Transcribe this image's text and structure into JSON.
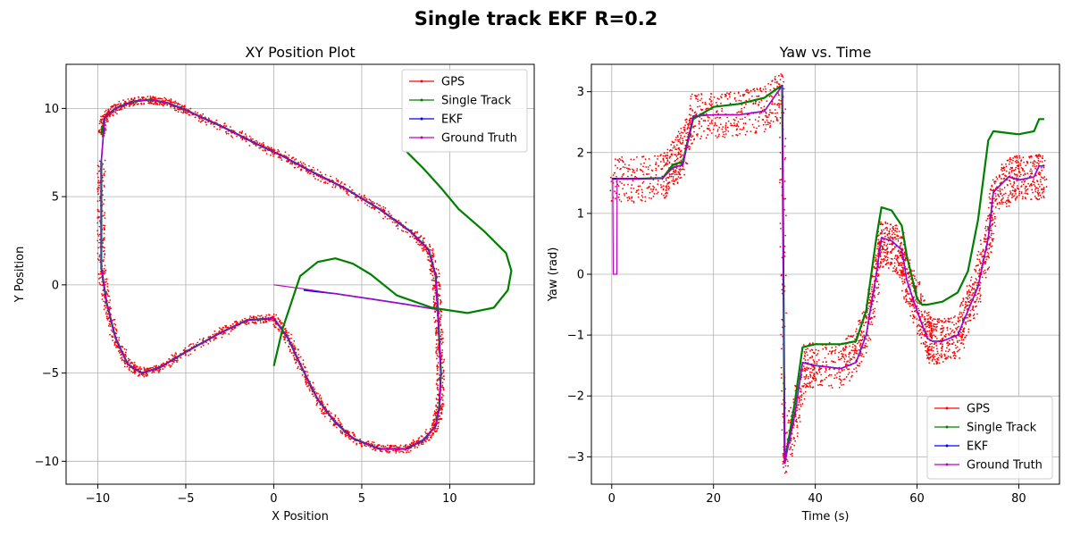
{
  "figure": {
    "title": "Single track EKF R=0.2"
  },
  "colors": {
    "gps": "#ff0000",
    "single_track": "#008000",
    "ekf": "#0000ff",
    "ground_truth": "#bf00bf",
    "grid": "#b0b0b0"
  },
  "chart_data": [
    {
      "type": "line",
      "title": "XY Position Plot",
      "xlabel": "X Position",
      "ylabel": "Y Position",
      "xlim": [
        -11.8,
        14.8
      ],
      "ylim": [
        -11.3,
        12.5
      ],
      "xticks": [
        -10,
        -5,
        0,
        5,
        10
      ],
      "yticks": [
        -10,
        -5,
        0,
        5,
        10
      ],
      "xtick_labels": [
        "−10",
        "−5",
        "0",
        "5",
        "10"
      ],
      "ytick_labels": [
        "−10",
        "−5",
        "0",
        "5",
        "10"
      ],
      "grid": true,
      "legend": "top-right",
      "series": [
        {
          "name": "GPS",
          "key": "gps",
          "style": "scatter-noisy",
          "x": [
            -9.8,
            -9.6,
            -9.0,
            -8.0,
            -7.0,
            -6.0,
            -5.0,
            -3.0,
            -1.0,
            0.5,
            2.0,
            4.0,
            6.0,
            7.8,
            8.8,
            9.2,
            9.3,
            9.4,
            9.5,
            9.4,
            9.2,
            8.5,
            7.5,
            6.0,
            4.5,
            3.5,
            2.5,
            1.5,
            0.8,
            0,
            -1.5,
            -3.0,
            -5.0,
            -6.5,
            -7.5,
            -8.3,
            -9.0,
            -9.5,
            -9.8,
            -9.8,
            -9.8
          ],
          "y": [
            8.5,
            9.5,
            10.0,
            10.4,
            10.5,
            10.3,
            9.9,
            9.0,
            8.0,
            7.3,
            6.5,
            5.5,
            4.3,
            3.0,
            2.0,
            0.5,
            -1.0,
            -3.0,
            -5.0,
            -7.0,
            -8.0,
            -8.8,
            -9.3,
            -9.3,
            -8.7,
            -7.8,
            -6.5,
            -4.5,
            -3.0,
            -1.9,
            -2.0,
            -2.7,
            -3.8,
            -4.7,
            -5.0,
            -4.5,
            -3.0,
            -1.0,
            1.0,
            4.0,
            7.0
          ]
        },
        {
          "name": "Single Track",
          "key": "single_track",
          "style": "line",
          "x": [
            -9.8,
            -9.6,
            -9.0,
            -8.0,
            -7.0,
            -6.0,
            -5.0,
            -3.0,
            -1.0,
            0.5,
            2.0,
            4.0,
            6.0,
            7.8,
            8.8,
            9.2,
            9.3,
            9.4,
            9.5,
            9.4,
            9.2,
            8.5,
            7.5,
            6.0,
            4.5,
            3.5,
            2.5,
            1.5,
            0.8,
            0,
            -1.5,
            -3.0,
            -5.0,
            -6.5,
            -7.5,
            -8.3,
            -9.0,
            -9.5,
            -9.8,
            -9.8,
            -9.8
          ],
          "y": [
            8.5,
            9.5,
            10.0,
            10.4,
            10.5,
            10.3,
            9.9,
            9.0,
            8.0,
            7.3,
            6.5,
            5.5,
            4.3,
            3.0,
            2.0,
            0.5,
            -1.0,
            -3.0,
            -5.0,
            -7.0,
            -8.0,
            -8.8,
            -9.3,
            -9.3,
            -8.7,
            -7.8,
            -6.5,
            -4.5,
            -3.0,
            -1.9,
            -2.0,
            -2.7,
            -3.8,
            -4.7,
            -5.0,
            -4.5,
            -3.0,
            -1.0,
            1.0,
            4.0,
            7.0
          ]
        },
        {
          "name": "EKF",
          "key": "ekf",
          "style": "line",
          "x": [
            1.7,
            3.5,
            5.5,
            7.5,
            9.3,
            9.2,
            9.3,
            9.4,
            9.5,
            9.4,
            9.2,
            8.5,
            7.5,
            6.0,
            4.5,
            3.5,
            2.5,
            1.5,
            0.8,
            0,
            -1.5,
            -3.0,
            -5.0,
            -6.5,
            -7.5,
            -8.3,
            -9.0,
            -9.5,
            -9.8,
            -9.8,
            -9.8,
            -9.6,
            -9.0,
            -8.0,
            -7.0,
            -6.0,
            -5.0,
            -3.0,
            -1.0,
            0.5,
            2.0,
            4.0,
            6.0,
            7.8,
            8.8,
            9.2
          ],
          "y": [
            -0.3,
            -0.5,
            -0.8,
            -1.1,
            -1.4,
            0.5,
            -1.0,
            -3.0,
            -5.0,
            -7.0,
            -8.0,
            -8.8,
            -9.3,
            -9.3,
            -8.7,
            -7.8,
            -6.5,
            -4.5,
            -3.0,
            -1.9,
            -2.0,
            -2.7,
            -3.8,
            -4.7,
            -5.0,
            -4.5,
            -3.0,
            -1.0,
            1.0,
            4.0,
            7.0,
            9.5,
            10.0,
            10.4,
            10.5,
            10.3,
            9.9,
            9.0,
            8.0,
            7.3,
            6.5,
            5.5,
            4.3,
            3.0,
            2.0,
            0.5
          ]
        },
        {
          "name": "Ground Truth",
          "key": "ground_truth",
          "style": "line",
          "x": [
            0,
            1.5,
            3.5,
            5.5,
            7.5,
            9.3,
            9.2,
            9.3,
            9.4,
            9.5,
            9.4,
            9.2,
            8.5,
            7.5,
            6.0,
            4.5,
            3.5,
            2.5,
            1.5,
            0.8,
            0,
            -1.5,
            -3.0,
            -5.0,
            -6.5,
            -7.5,
            -8.3,
            -9.0,
            -9.5,
            -9.8,
            -9.8,
            -9.8,
            -9.6,
            -9.0,
            -8.0,
            -7.0,
            -6.0,
            -5.0,
            -3.0,
            -1.0,
            0.5,
            2.0,
            4.0,
            6.0,
            7.8,
            8.8,
            9.2
          ],
          "y": [
            0,
            -0.2,
            -0.5,
            -0.8,
            -1.1,
            -1.4,
            0.5,
            -1.0,
            -3.0,
            -5.0,
            -7.0,
            -8.0,
            -8.8,
            -9.3,
            -9.3,
            -8.7,
            -7.8,
            -6.5,
            -4.5,
            -3.0,
            -1.9,
            -2.0,
            -2.7,
            -3.8,
            -4.7,
            -5.0,
            -4.5,
            -3.0,
            -1.0,
            1.0,
            4.0,
            7.0,
            9.5,
            10.0,
            10.4,
            10.5,
            10.3,
            9.9,
            9.0,
            8.0,
            7.3,
            6.5,
            5.5,
            4.3,
            3.0,
            2.0,
            0.5
          ]
        },
        {
          "name": "Single Track (drift)",
          "key": "single_track",
          "style": "line",
          "legend": false,
          "x": [
            0,
            0.5,
            1.5,
            2.5,
            3.5,
            4.5,
            5.5,
            7.0,
            9.0,
            11.0,
            12.5,
            13.3,
            13.5,
            13.2,
            12.0,
            10.5,
            9.5,
            8.5,
            7.5
          ],
          "y": [
            -4.6,
            -2.5,
            0.5,
            1.3,
            1.5,
            1.2,
            0.6,
            -0.6,
            -1.3,
            -1.6,
            -1.3,
            -0.3,
            0.8,
            1.8,
            3.0,
            4.3,
            5.5,
            6.6,
            7.6
          ]
        }
      ]
    },
    {
      "type": "line",
      "title": "Yaw vs. Time",
      "xlabel": "Time (s)",
      "ylabel": "Yaw (rad)",
      "xlim": [
        -4,
        88
      ],
      "ylim": [
        -3.45,
        3.45
      ],
      "xticks": [
        0,
        20,
        40,
        60,
        80
      ],
      "yticks": [
        -3,
        -2,
        -1,
        0,
        1,
        2,
        3
      ],
      "xtick_labels": [
        "0",
        "20",
        "40",
        "60",
        "80"
      ],
      "ytick_labels": [
        "−3",
        "−2",
        "−1",
        "0",
        "1",
        "2",
        "3"
      ],
      "grid": true,
      "legend": "bottom-right",
      "series": [
        {
          "name": "GPS",
          "key": "gps",
          "style": "scatter-noisy",
          "x": [
            0,
            5,
            10,
            12,
            14,
            16,
            20,
            25,
            30,
            33.5,
            34,
            36,
            38,
            40,
            45,
            48,
            50,
            52,
            53,
            55,
            57,
            58,
            60,
            62,
            63,
            65,
            68,
            70,
            72,
            74,
            75,
            78,
            80,
            83,
            85
          ],
          "y": [
            1.55,
            1.55,
            1.6,
            1.8,
            2.0,
            2.6,
            2.6,
            2.65,
            2.7,
            3.0,
            -3.0,
            -2.3,
            -1.5,
            -1.5,
            -1.5,
            -1.3,
            -0.9,
            0.0,
            0.5,
            0.45,
            0.35,
            -0.1,
            -0.5,
            -1.0,
            -1.1,
            -1.1,
            -1.0,
            -0.6,
            -0.2,
            0.6,
            1.2,
            1.55,
            1.6,
            1.6,
            1.6
          ]
        },
        {
          "name": "Single Track",
          "key": "single_track",
          "style": "line",
          "x": [
            0,
            5,
            10,
            12,
            14,
            16,
            20,
            25,
            30,
            32.5,
            33.5,
            34,
            36,
            37.5,
            40,
            45,
            48,
            50,
            52,
            53,
            55,
            57,
            58,
            60,
            61,
            62,
            65,
            68,
            70,
            72,
            74,
            75,
            78,
            80,
            83,
            84,
            85
          ],
          "y": [
            1.57,
            1.57,
            1.58,
            1.8,
            1.85,
            2.55,
            2.75,
            2.8,
            2.9,
            3.05,
            3.1,
            -3.1,
            -2.1,
            -1.2,
            -1.15,
            -1.15,
            -1.1,
            -0.6,
            0.6,
            1.1,
            1.05,
            0.8,
            0.3,
            -0.4,
            -0.5,
            -0.5,
            -0.45,
            -0.3,
            0.05,
            0.9,
            2.2,
            2.35,
            2.32,
            2.3,
            2.35,
            2.55,
            2.55
          ]
        },
        {
          "name": "EKF",
          "key": "ekf",
          "style": "line",
          "x": [
            0,
            5,
            10,
            12,
            14,
            16,
            20,
            25,
            30,
            33.5,
            34,
            36,
            37.5,
            40,
            45,
            48,
            50,
            52,
            53,
            55,
            57,
            58,
            60,
            62,
            63,
            65,
            68,
            70,
            72,
            74,
            75,
            78,
            80,
            83,
            84,
            85
          ],
          "y": [
            1.57,
            1.57,
            1.58,
            1.75,
            1.8,
            2.6,
            2.62,
            2.62,
            2.68,
            3.1,
            -3.1,
            -2.3,
            -1.45,
            -1.5,
            -1.55,
            -1.45,
            -1.0,
            0.0,
            0.6,
            0.55,
            0.4,
            -0.1,
            -0.6,
            -1.05,
            -1.1,
            -1.1,
            -1.0,
            -0.6,
            -0.2,
            0.6,
            1.35,
            1.6,
            1.55,
            1.6,
            1.78,
            1.78
          ]
        },
        {
          "name": "Ground Truth",
          "key": "ground_truth",
          "style": "line",
          "x": [
            0,
            0.2,
            0.3,
            1.0,
            1.05,
            5,
            10,
            12,
            14,
            16,
            20,
            25,
            30,
            33.5,
            34,
            36,
            37.5,
            40,
            45,
            48,
            50,
            52,
            53,
            55,
            57,
            58,
            60,
            62,
            63,
            65,
            68,
            70,
            72,
            74,
            75,
            78,
            80,
            83,
            84,
            85
          ],
          "y": [
            1.57,
            1.57,
            0,
            0,
            1.57,
            1.57,
            1.58,
            1.75,
            1.8,
            2.6,
            2.62,
            2.62,
            2.68,
            3.1,
            -3.1,
            -2.3,
            -1.45,
            -1.5,
            -1.55,
            -1.45,
            -1.0,
            0.0,
            0.6,
            0.55,
            0.4,
            -0.1,
            -0.6,
            -1.05,
            -1.1,
            -1.1,
            -1.0,
            -0.6,
            -0.2,
            0.6,
            1.35,
            1.6,
            1.55,
            1.6,
            1.78,
            1.78
          ]
        }
      ]
    }
  ]
}
